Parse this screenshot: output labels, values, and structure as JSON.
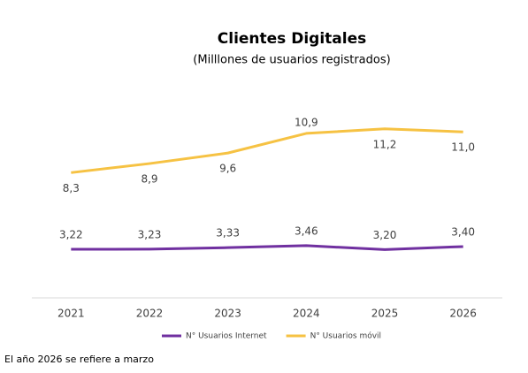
{
  "chart_data": {
    "type": "line",
    "title": "Clientes Digitales",
    "subtitle": "(Milllones de usuarios registrados)",
    "categories": [
      "2021",
      "2022",
      "2023",
      "2024",
      "2025",
      "2026"
    ],
    "series": [
      {
        "name": "N° Usuarios Internet",
        "color": "#7030a0",
        "values": [
          3.22,
          3.23,
          3.33,
          3.46,
          3.2,
          3.4
        ],
        "value_labels": [
          "3,22",
          "3,23",
          "3,33",
          "3,46",
          "3,20",
          "3,40"
        ]
      },
      {
        "name": "N° Usuarios móvil",
        "color": "#f6c243",
        "values": [
          8.3,
          8.9,
          9.6,
          10.9,
          11.2,
          11.0
        ],
        "value_labels": [
          "8,3",
          "8,9",
          "9,6",
          "10,9",
          "11,2",
          "11,0"
        ]
      }
    ],
    "ylim": [
      0,
      14
    ],
    "legend": "bottom",
    "footnote": "El año 2026 se refiere a marzo"
  }
}
